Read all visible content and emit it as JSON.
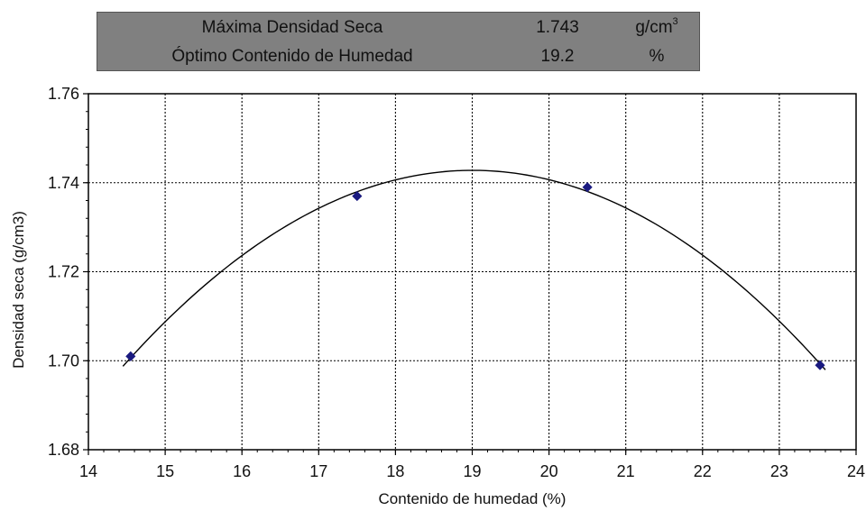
{
  "summary": {
    "rows": [
      {
        "label": "Máxima Densidad Seca",
        "value": "1.743",
        "unit": "g/cm",
        "unit_sup": "3"
      },
      {
        "label": "Óptimo Contenido de Humedad",
        "value": "19.2",
        "unit": "%",
        "unit_sup": ""
      }
    ]
  },
  "chart_data": {
    "type": "scatter",
    "title": "",
    "xlabel": "Contenido de humedad (%)",
    "ylabel": "Densidad seca (g/cm3)",
    "xlim": [
      14,
      24
    ],
    "ylim": [
      1.68,
      1.76
    ],
    "xticks": [
      "14",
      "15",
      "16",
      "17",
      "18",
      "19",
      "20",
      "21",
      "22",
      "23",
      "24"
    ],
    "yticks": [
      "1.68",
      "1.70",
      "1.72",
      "1.74",
      "1.76"
    ],
    "grid": true,
    "series": [
      {
        "points": [
          {
            "x": 14.55,
            "y": 1.701
          },
          {
            "x": 17.5,
            "y": 1.737
          },
          {
            "x": 20.5,
            "y": 1.739
          },
          {
            "x": 23.53,
            "y": 1.699
          }
        ],
        "marker_color": "#1a1a80"
      }
    ],
    "fit_curve": {
      "type": "quadratic",
      "x_range": [
        14.45,
        23.6
      ],
      "peak_x": 19.2,
      "peak_y": 1.743,
      "color": "#000000"
    }
  }
}
